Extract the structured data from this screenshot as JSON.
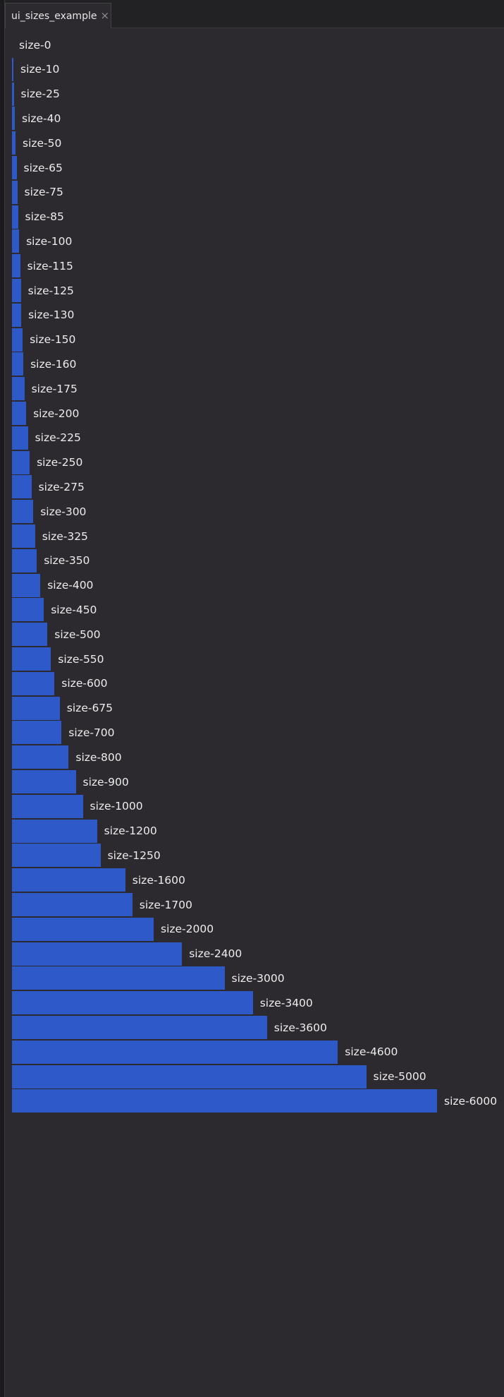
{
  "tab": {
    "title": "ui_sizes_example",
    "close_icon": "close-icon"
  },
  "colors": {
    "bar": "#2d5ac8",
    "panel_bg": "#2c2a2e",
    "text": "#ededed"
  },
  "items": [
    {
      "label": "size-0",
      "size": 0
    },
    {
      "label": "size-10",
      "size": 10
    },
    {
      "label": "size-25",
      "size": 25
    },
    {
      "label": "size-40",
      "size": 40
    },
    {
      "label": "size-50",
      "size": 50
    },
    {
      "label": "size-65",
      "size": 65
    },
    {
      "label": "size-75",
      "size": 75
    },
    {
      "label": "size-85",
      "size": 85
    },
    {
      "label": "size-100",
      "size": 100
    },
    {
      "label": "size-115",
      "size": 115
    },
    {
      "label": "size-125",
      "size": 125
    },
    {
      "label": "size-130",
      "size": 130
    },
    {
      "label": "size-150",
      "size": 150
    },
    {
      "label": "size-160",
      "size": 160
    },
    {
      "label": "size-175",
      "size": 175
    },
    {
      "label": "size-200",
      "size": 200
    },
    {
      "label": "size-225",
      "size": 225
    },
    {
      "label": "size-250",
      "size": 250
    },
    {
      "label": "size-275",
      "size": 275
    },
    {
      "label": "size-300",
      "size": 300
    },
    {
      "label": "size-325",
      "size": 325
    },
    {
      "label": "size-350",
      "size": 350
    },
    {
      "label": "size-400",
      "size": 400
    },
    {
      "label": "size-450",
      "size": 450
    },
    {
      "label": "size-500",
      "size": 500
    },
    {
      "label": "size-550",
      "size": 550
    },
    {
      "label": "size-600",
      "size": 600
    },
    {
      "label": "size-675",
      "size": 675
    },
    {
      "label": "size-700",
      "size": 700
    },
    {
      "label": "size-800",
      "size": 800
    },
    {
      "label": "size-900",
      "size": 900
    },
    {
      "label": "size-1000",
      "size": 1000
    },
    {
      "label": "size-1200",
      "size": 1200
    },
    {
      "label": "size-1250",
      "size": 1250
    },
    {
      "label": "size-1600",
      "size": 1600
    },
    {
      "label": "size-1700",
      "size": 1700
    },
    {
      "label": "size-2000",
      "size": 2000
    },
    {
      "label": "size-2400",
      "size": 2400
    },
    {
      "label": "size-3000",
      "size": 3000
    },
    {
      "label": "size-3400",
      "size": 3400
    },
    {
      "label": "size-3600",
      "size": 3600
    },
    {
      "label": "size-4600",
      "size": 4600
    },
    {
      "label": "size-5000",
      "size": 5000
    },
    {
      "label": "size-6000",
      "size": 6000
    }
  ]
}
